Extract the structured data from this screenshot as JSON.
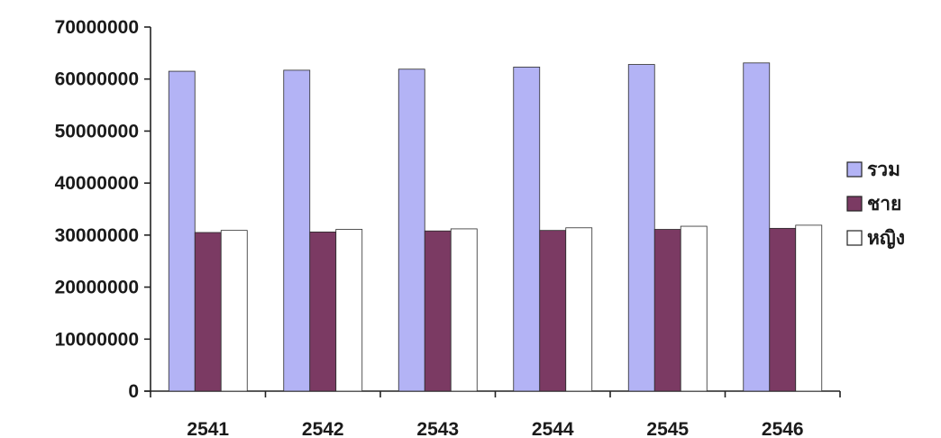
{
  "chart_data": {
    "type": "bar",
    "title": "",
    "xlabel": "",
    "ylabel": "",
    "categories": [
      "2541",
      "2542",
      "2543",
      "2544",
      "2545",
      "2546"
    ],
    "ylim": [
      0,
      70000000
    ],
    "yticks": [
      0,
      10000000,
      20000000,
      30000000,
      40000000,
      50000000,
      60000000,
      70000000
    ],
    "grid": false,
    "legend_position": "right",
    "series": [
      {
        "name": "รวม",
        "color": "#b3b3f5",
        "values": [
          61500000,
          61700000,
          61900000,
          62300000,
          62800000,
          63100000
        ]
      },
      {
        "name": "ชาย",
        "color": "#7b3a63",
        "values": [
          30500000,
          30600000,
          30800000,
          30900000,
          31100000,
          31300000
        ]
      },
      {
        "name": "หญิง",
        "color": "#ffffff",
        "values": [
          30900000,
          31100000,
          31200000,
          31400000,
          31700000,
          31900000
        ]
      }
    ]
  }
}
